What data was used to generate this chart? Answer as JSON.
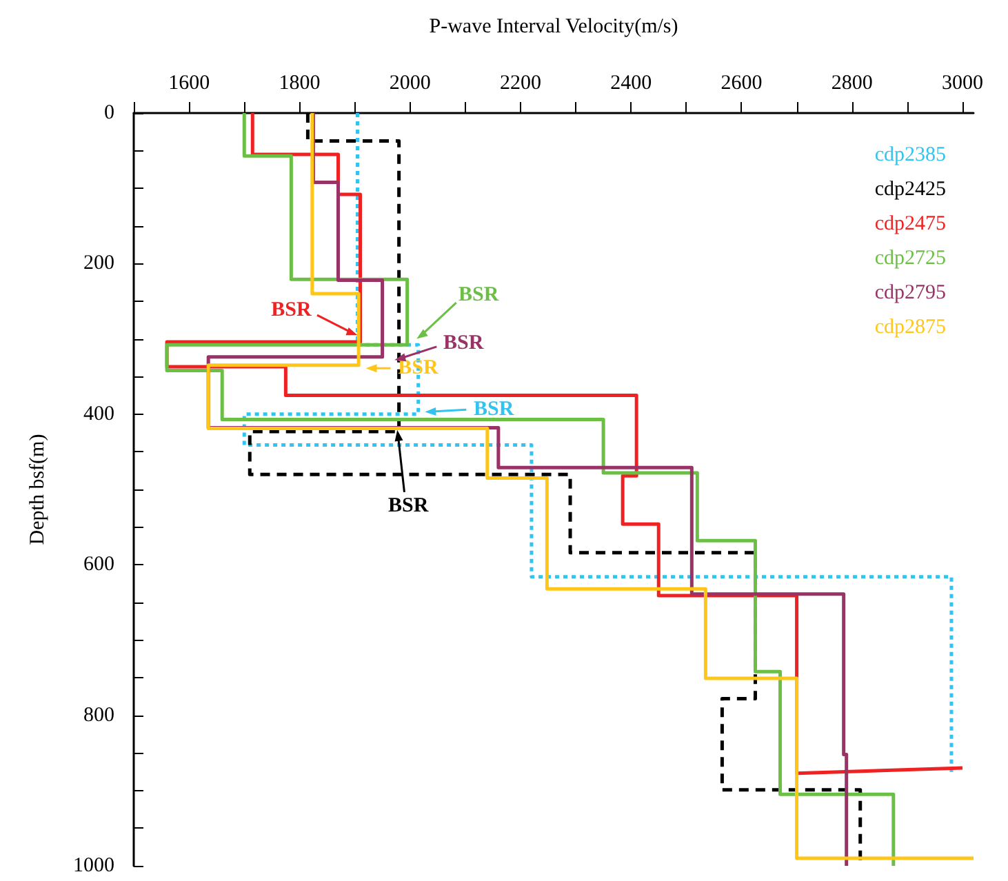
{
  "chart_data": {
    "type": "line",
    "xlabel": "P-wave Interval Velocity(m/s)",
    "ylabel": "Depth bsf(m)",
    "xlim": [
      1500,
      3020
    ],
    "xticks": [
      {
        "value": 1500,
        "label": null
      },
      1600,
      {
        "value": 1700,
        "label": null
      },
      1800,
      {
        "value": 1900,
        "label": null
      },
      2000,
      {
        "value": 2100,
        "label": null
      },
      2200,
      {
        "value": 2300,
        "label": null
      },
      2400,
      {
        "value": 2500,
        "label": null
      },
      2600,
      {
        "value": 2700,
        "label": null
      },
      2800,
      {
        "value": 2900,
        "label": null
      },
      3000
    ],
    "ylim": [
      1000,
      0
    ],
    "yticks": [
      0,
      {
        "value": 50,
        "label": null
      },
      {
        "value": 100,
        "label": null
      },
      {
        "value": 150,
        "label": null
      },
      200,
      {
        "value": 250,
        "label": null
      },
      {
        "value": 300,
        "label": null
      },
      {
        "value": 350,
        "label": null
      },
      400,
      {
        "value": 450,
        "label": null
      },
      {
        "value": 500,
        "label": null
      },
      {
        "value": 550,
        "label": null
      },
      600,
      {
        "value": 650,
        "label": null
      },
      {
        "value": 700,
        "label": null
      },
      {
        "value": 750,
        "label": null
      },
      800,
      {
        "value": 850,
        "label": null
      },
      {
        "value": 900,
        "label": null
      },
      {
        "value": 950,
        "label": null
      },
      1000
    ],
    "grid": false,
    "legend": "top right",
    "marker": "none",
    "series": [
      {
        "name": "cdp2385",
        "color": "#33c3f0",
        "line_style": "dotted",
        "x": [
          1905,
          1905,
          2015,
          2015,
          1700,
          1700,
          2220,
          2220,
          2980,
          2980
        ],
        "values": [
          0,
          308,
          308,
          400,
          400,
          441,
          441,
          616,
          616,
          880
        ]
      },
      {
        "name": "cdp2425",
        "color": "#000000",
        "line_style": "dashed",
        "x": [
          1815,
          1815,
          1980,
          1980,
          1710,
          1710,
          2290,
          2290,
          2625,
          2625,
          2565,
          2565,
          2815,
          2815
        ],
        "values": [
          0,
          37,
          37,
          423,
          423,
          480,
          480,
          584,
          584,
          778,
          778,
          899,
          899,
          1000
        ]
      },
      {
        "name": "cdp2475",
        "color": "#ee2222",
        "line_style": "solid",
        "x": [
          1715,
          1715,
          1870,
          1870,
          1910,
          1910,
          1560,
          1560,
          1775,
          1775,
          2410,
          2410,
          2385,
          2385,
          2450,
          2450,
          2700,
          2700,
          3000
        ],
        "values": [
          0,
          55,
          55,
          108,
          108,
          304,
          304,
          337,
          337,
          375,
          375,
          482,
          482,
          546,
          546,
          641,
          641,
          877,
          870
        ]
      },
      {
        "name": "cdp2725",
        "color": "#6cbf45",
        "line_style": "solid",
        "x": [
          1700,
          1700,
          1785,
          1785,
          1995,
          1995,
          1560,
          1560,
          1660,
          1660,
          2350,
          2350,
          2520,
          2520,
          2625,
          2625,
          2670,
          2670,
          2875,
          2875
        ],
        "values": [
          0,
          57,
          57,
          221,
          221,
          308,
          308,
          342,
          342,
          407,
          407,
          478,
          478,
          568,
          568,
          742,
          742,
          905,
          905,
          1000
        ]
      },
      {
        "name": "cdp2795",
        "color": "#993366",
        "line_style": "solid",
        "x": [
          1825,
          1825,
          1870,
          1870,
          1950,
          1950,
          1635,
          1635,
          2160,
          2160,
          2510,
          2510,
          2785,
          2785,
          2790,
          2790
        ],
        "values": [
          0,
          92,
          92,
          222,
          222,
          324,
          324,
          418,
          418,
          471,
          471,
          639,
          639,
          852,
          852,
          1000
        ]
      },
      {
        "name": "cdp2875",
        "color": "#ffc61a",
        "line_style": "solid",
        "x": [
          1823,
          1823,
          1907,
          1907,
          1635,
          1635,
          2140,
          2140,
          2248,
          2248,
          2535,
          2535,
          2700,
          2700,
          3020
        ],
        "values": [
          0,
          240,
          240,
          335,
          335,
          419,
          419,
          485,
          485,
          632,
          632,
          751,
          751,
          990,
          990
        ]
      }
    ],
    "annotations": [
      {
        "text": "BSR",
        "x": 2027,
        "y": 397
      },
      {
        "text": "BSR",
        "x": 1977,
        "y": 421
      },
      {
        "text": "BSR",
        "x": 1905,
        "y": 295
      },
      {
        "text": "BSR",
        "x": 2012,
        "y": 300
      },
      {
        "text": "BSR",
        "x": 1972,
        "y": 328
      },
      {
        "text": "BSR",
        "x": 1920,
        "y": 339
      }
    ]
  }
}
